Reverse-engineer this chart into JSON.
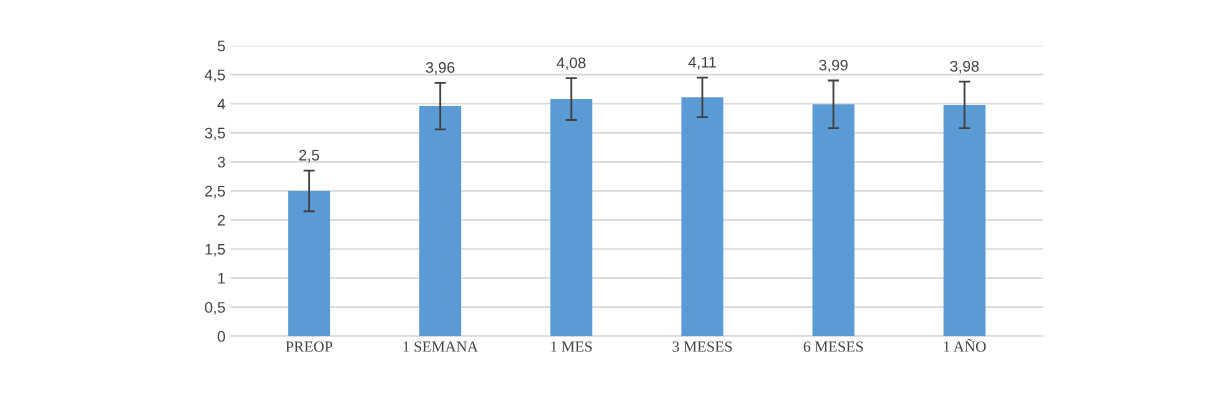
{
  "chart_data": {
    "type": "bar",
    "categories": [
      "PREOP",
      "1 SEMANA",
      "1 MES",
      "3 MESES",
      "6 MESES",
      "1 AÑO"
    ],
    "values": [
      2.5,
      3.96,
      4.08,
      4.11,
      3.99,
      3.98
    ],
    "errors": [
      0.35,
      0.4,
      0.36,
      0.34,
      0.41,
      0.4
    ],
    "value_labels": [
      "2,5",
      "3,96",
      "4,08",
      "4,11",
      "3,99",
      "3,98"
    ],
    "color": "#5b9bd5",
    "ylim": [
      0,
      5
    ],
    "yticks": [
      0,
      {
        "value": 0.5,
        "label": "0,5"
      },
      1,
      {
        "value": 1.5,
        "label": "1,5"
      },
      2,
      {
        "value": 2.5,
        "label": "2,5"
      },
      3,
      {
        "value": 3.5,
        "label": "3,5"
      },
      4,
      {
        "value": 4.5,
        "label": "4,5"
      },
      5
    ],
    "grid": "y"
  }
}
